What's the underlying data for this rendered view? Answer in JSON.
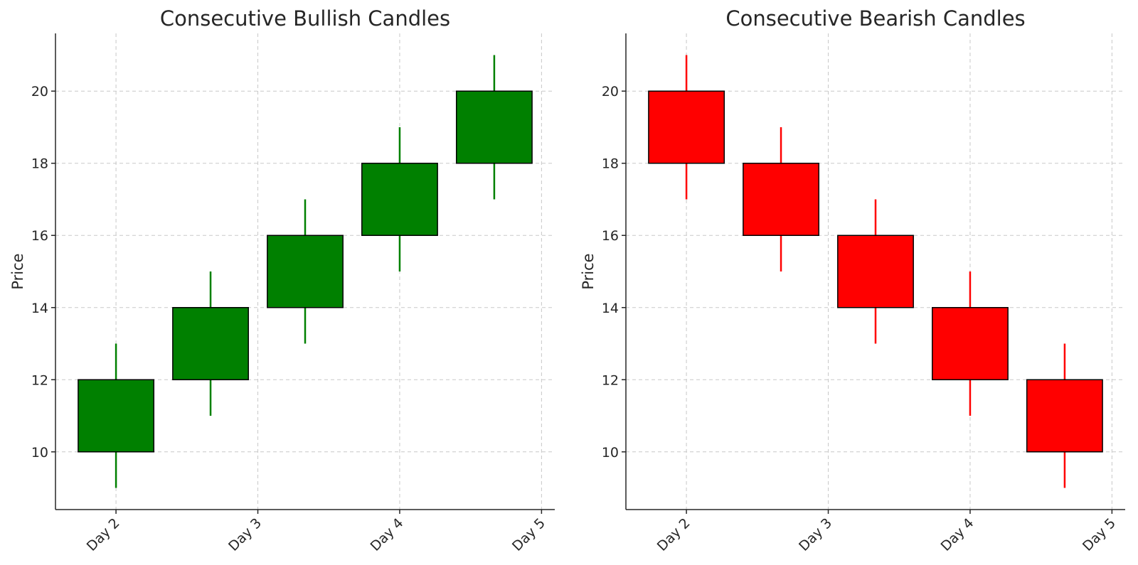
{
  "chart_data": [
    {
      "type": "candlestick",
      "title": "Consecutive Bullish Candles",
      "xlabel": "",
      "ylabel": "Price",
      "ylim": [
        8.4,
        21.6
      ],
      "yticks": [
        10,
        12,
        14,
        16,
        18,
        20
      ],
      "xticks": [
        {
          "label": "Day 2",
          "x": 0
        },
        {
          "label": "Day 3",
          "x": 1.5
        },
        {
          "label": "Day 4",
          "x": 3
        },
        {
          "label": "Day 5",
          "x": 4.5
        }
      ],
      "xlim": [
        -0.64,
        4.64
      ],
      "grid": true,
      "color": "#008000",
      "candles": [
        {
          "x": 0,
          "open": 10,
          "close": 12,
          "low": 9,
          "high": 13
        },
        {
          "x": 1,
          "open": 12,
          "close": 14,
          "low": 11,
          "high": 15
        },
        {
          "x": 2,
          "open": 14,
          "close": 16,
          "low": 13,
          "high": 17
        },
        {
          "x": 3,
          "open": 16,
          "close": 18,
          "low": 15,
          "high": 19
        },
        {
          "x": 4,
          "open": 18,
          "close": 20,
          "low": 17,
          "high": 21
        }
      ]
    },
    {
      "type": "candlestick",
      "title": "Consecutive Bearish Candles",
      "xlabel": "",
      "ylabel": "Price",
      "ylim": [
        8.4,
        21.6
      ],
      "yticks": [
        10,
        12,
        14,
        16,
        18,
        20
      ],
      "xticks": [
        {
          "label": "Day 2",
          "x": 0
        },
        {
          "label": "Day 3",
          "x": 1.5
        },
        {
          "label": "Day 4",
          "x": 3
        },
        {
          "label": "Day 5",
          "x": 4.5
        }
      ],
      "xlim": [
        -0.64,
        4.64
      ],
      "grid": true,
      "color": "#ff0000",
      "candles": [
        {
          "x": 0,
          "open": 20,
          "close": 18,
          "low": 17,
          "high": 21
        },
        {
          "x": 1,
          "open": 18,
          "close": 16,
          "low": 15,
          "high": 19
        },
        {
          "x": 2,
          "open": 16,
          "close": 14,
          "low": 13,
          "high": 17
        },
        {
          "x": 3,
          "open": 14,
          "close": 12,
          "low": 11,
          "high": 15
        },
        {
          "x": 4,
          "open": 12,
          "close": 10,
          "low": 9,
          "high": 13
        }
      ]
    }
  ]
}
